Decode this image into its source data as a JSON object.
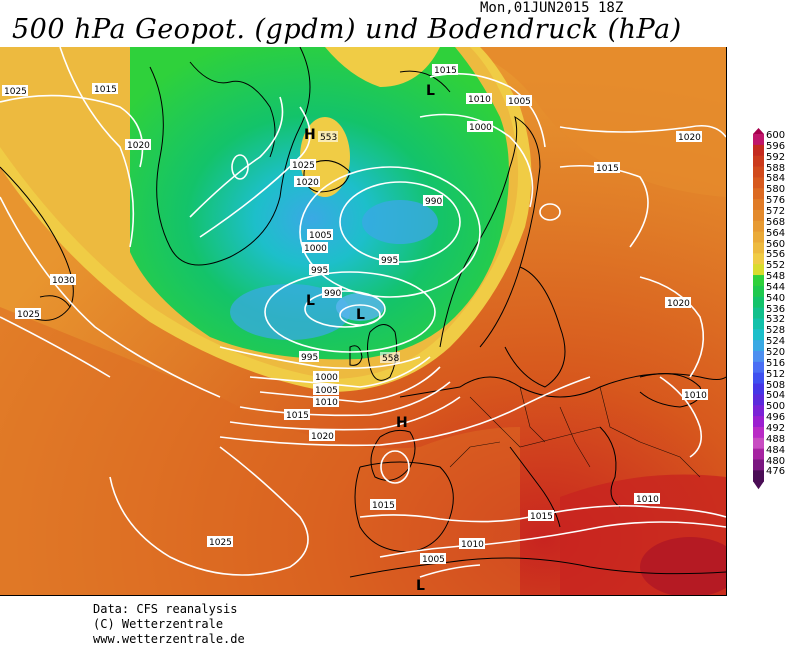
{
  "header": {
    "title": "500 hPa Geopot. (gpdm) und Bodendruck (hPa)",
    "timestamp": "Mon,01JUN2015 18Z"
  },
  "credits": {
    "line1": "Data: CFS reanalysis",
    "line2": "(C) Wetterzentrale",
    "line3": "www.wetterzentrale.de"
  },
  "scale": {
    "levels": [
      "600",
      "596",
      "592",
      "588",
      "584",
      "580",
      "576",
      "572",
      "568",
      "564",
      "560",
      "556",
      "552",
      "548",
      "544",
      "540",
      "536",
      "532",
      "528",
      "524",
      "520",
      "516",
      "512",
      "508",
      "504",
      "500",
      "496",
      "492",
      "488",
      "484",
      "480",
      "476"
    ],
    "colors": [
      "#c0166b",
      "#c42a1f",
      "#cb3a1c",
      "#d14a1c",
      "#d7591e",
      "#dc6a22",
      "#e07b27",
      "#e38a2c",
      "#e79a32",
      "#eaaa38",
      "#edba3f",
      "#f0cc45",
      "#d8dc2d",
      "#2fd13b",
      "#1fc94e",
      "#13c36a",
      "#12c08c",
      "#13c1aa",
      "#1dbfca",
      "#3aa9e4",
      "#4d8ff0",
      "#4a6ef4",
      "#3f50f0",
      "#4636e6",
      "#5c2adc",
      "#7b22d6",
      "#9b1fd0",
      "#b92bc6",
      "#c84cc2",
      "#a623a1",
      "#7a1780",
      "#4a0d55"
    ],
    "colors_dark_top": "#a7004e"
  },
  "map": {
    "isobar_labels": [
      {
        "text": "1025"
      },
      {
        "text": "1015"
      },
      {
        "text": "1020"
      },
      {
        "text": "1030"
      },
      {
        "text": "1025"
      },
      {
        "text": "1015"
      },
      {
        "text": "1010"
      },
      {
        "text": "1005"
      },
      {
        "text": "1000"
      },
      {
        "text": "1020"
      },
      {
        "text": "1015"
      },
      {
        "text": "553"
      },
      {
        "text": "1025"
      },
      {
        "text": "1020"
      },
      {
        "text": "990"
      },
      {
        "text": "1005"
      },
      {
        "text": "1000"
      },
      {
        "text": "995"
      },
      {
        "text": "995"
      },
      {
        "text": "990"
      },
      {
        "text": "995"
      },
      {
        "text": "558"
      },
      {
        "text": "1000"
      },
      {
        "text": "1005"
      },
      {
        "text": "1010"
      },
      {
        "text": "1015"
      },
      {
        "text": "1020"
      },
      {
        "text": "1020"
      },
      {
        "text": "1010"
      },
      {
        "text": "1015"
      },
      {
        "text": "1015"
      },
      {
        "text": "1010"
      },
      {
        "text": "1005"
      },
      {
        "text": "1010"
      },
      {
        "text": "1025"
      }
    ],
    "pressure_centers": [
      {
        "text": "L"
      },
      {
        "text": "H"
      },
      {
        "text": "L"
      },
      {
        "text": "L"
      },
      {
        "text": "H"
      },
      {
        "text": "L"
      }
    ]
  }
}
